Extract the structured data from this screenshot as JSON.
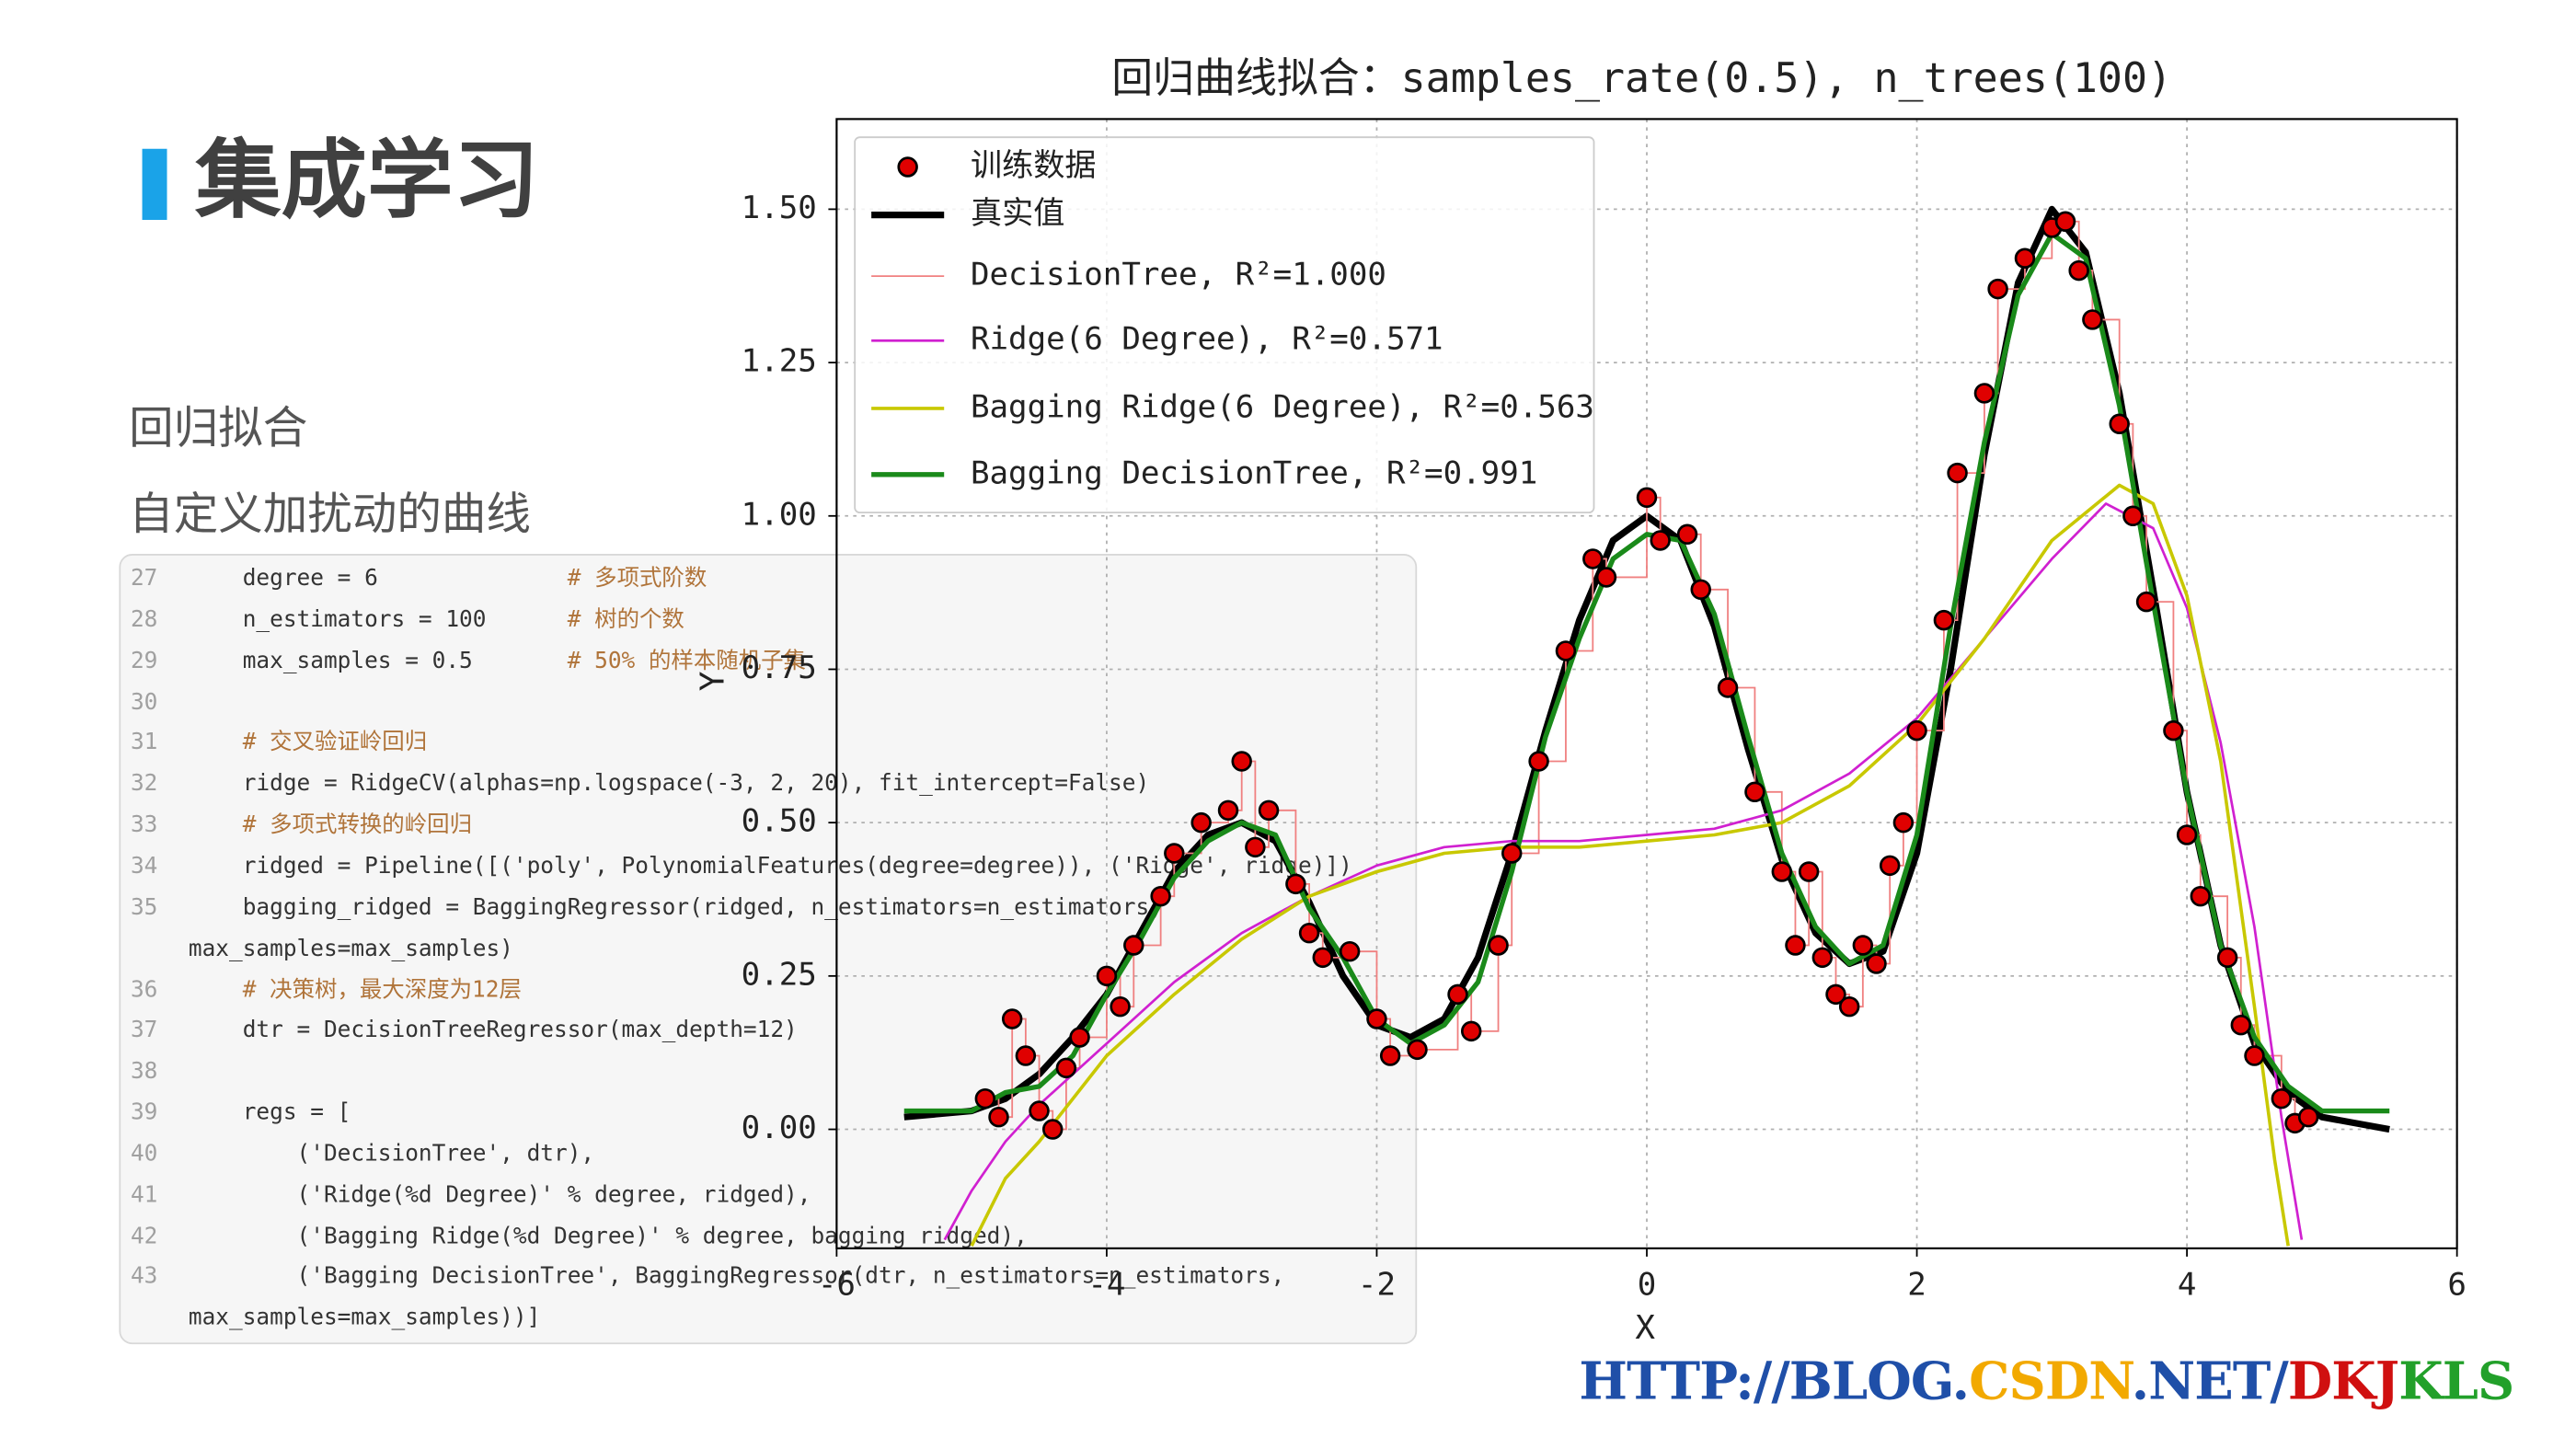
{
  "slide": {
    "title": "集成学习",
    "lines": [
      "回归拟合",
      "自定义加扰动的曲线"
    ]
  },
  "code": {
    "lines": [
      {
        "number": "27",
        "text": [
          "    degree = 6              # 多项式阶数"
        ]
      },
      {
        "number": "28",
        "text": [
          "    n_estimators = 100      # 树的个数"
        ]
      },
      {
        "number": "29",
        "text": [
          "    max_samples = 0.5       # 50% 的样本随机子集"
        ]
      },
      {
        "number": "30",
        "text": []
      },
      {
        "number": "31",
        "text": [
          "    # 交叉验证岭回归"
        ]
      },
      {
        "number": "32",
        "text": [
          "    ridge = RidgeCV(alphas=np.logspace(-3, 2, 20), fit_intercept=False)"
        ]
      },
      {
        "number": "33",
        "text": [
          "    # 多项式转换的岭回归"
        ]
      },
      {
        "number": "34",
        "text": [
          "    ridged = Pipeline([('poly', PolynomialFeatures(degree=degree)), ('Ridge', ridge)])"
        ]
      },
      {
        "number": "35",
        "text": [
          "    bagging_ridged = BaggingRegressor(ridged, n_estimators=n_estimators,",
          "max_samples=max_samples)"
        ]
      },
      {
        "number": "36",
        "text": [
          "    # 决策树，最大深度为12层"
        ]
      },
      {
        "number": "37",
        "text": [
          "    dtr = DecisionTreeRegressor(max_depth=12)"
        ]
      },
      {
        "number": "38",
        "text": []
      },
      {
        "number": "39",
        "text": [
          "    regs = ["
        ]
      },
      {
        "number": "40",
        "text": [
          "        ('DecisionTree', dtr),"
        ]
      },
      {
        "number": "41",
        "text": [
          "        ('Ridge(%d Degree)' % degree, ridged),"
        ]
      },
      {
        "number": "42",
        "text": [
          "        ('Bagging Ridge(%d Degree)' % degree, bagging_ridged),"
        ]
      },
      {
        "number": "43",
        "text": [
          "        ('Bagging DecisionTree', BaggingRegressor(dtr, n_estimators=n_estimators,",
          "max_samples=max_samples))]"
        ]
      }
    ]
  },
  "watermark": {
    "parts": [
      {
        "text": "HTTP://BLOG.",
        "color": "#1f4fa8"
      },
      {
        "text": "CSDN",
        "color": "#f2a900"
      },
      {
        "text": ".NET/",
        "color": "#1f4fa8"
      },
      {
        "text": "DKJ",
        "color": "#d01010"
      },
      {
        "text": "KLS",
        "color": "#22a02a"
      }
    ]
  },
  "chart_data": {
    "type": "line",
    "title": "回归曲线拟合：samples_rate(0.5), n_trees(100)",
    "x_label": "X",
    "y_label": "Y",
    "xlim": [
      -6,
      6
    ],
    "ylim": [
      -0.194,
      1.647
    ],
    "xticks": [
      -6,
      -4,
      -2,
      0,
      2,
      4,
      6
    ],
    "yticks": [
      {
        "value": 0,
        "label": "0.00"
      },
      {
        "value": 0.25,
        "label": "0.25"
      },
      {
        "value": 0.5,
        "label": "0.50"
      },
      {
        "value": 0.75,
        "label": "0.75"
      },
      {
        "value": 1,
        "label": "1.00"
      },
      {
        "value": 1.25,
        "label": "1.25"
      },
      {
        "value": 1.5,
        "label": "1.50"
      }
    ],
    "grid": true,
    "legend": "upper left",
    "series": [
      {
        "name": "训练数据",
        "style": "scatter",
        "color": "#e00000",
        "x": [
          -4.9,
          -4.8,
          -4.7,
          -4.6,
          -4.5,
          -4.4,
          -4.3,
          -4.2,
          -4.0,
          -3.9,
          -3.8,
          -3.6,
          -3.5,
          -3.3,
          -3.1,
          -3.0,
          -2.9,
          -2.8,
          -2.6,
          -2.5,
          -2.4,
          -2.2,
          -2.0,
          -1.9,
          -1.7,
          -1.4,
          -1.3,
          -1.1,
          -1.0,
          -0.8,
          -0.6,
          -0.4,
          -0.3,
          0.0,
          0.1,
          0.3,
          0.4,
          0.6,
          0.8,
          1.0,
          1.1,
          1.2,
          1.3,
          1.4,
          1.5,
          1.6,
          1.7,
          1.8,
          1.9,
          2.0,
          2.2,
          2.3,
          2.5,
          2.6,
          2.8,
          3.0,
          3.1,
          3.2,
          3.3,
          3.5,
          3.6,
          3.7,
          3.9,
          4.0,
          4.1,
          4.3,
          4.4,
          4.5,
          4.7,
          4.8,
          4.9
        ],
        "values": [
          0.05,
          0.02,
          0.18,
          0.12,
          0.03,
          0.0,
          0.1,
          0.15,
          0.25,
          0.2,
          0.3,
          0.38,
          0.45,
          0.5,
          0.52,
          0.6,
          0.46,
          0.52,
          0.4,
          0.32,
          0.28,
          0.29,
          0.18,
          0.12,
          0.13,
          0.22,
          0.16,
          0.3,
          0.45,
          0.6,
          0.78,
          0.93,
          0.9,
          1.03,
          0.96,
          0.97,
          0.88,
          0.72,
          0.55,
          0.42,
          0.3,
          0.42,
          0.28,
          0.22,
          0.2,
          0.3,
          0.27,
          0.43,
          0.5,
          0.65,
          0.83,
          1.07,
          1.2,
          1.37,
          1.42,
          1.47,
          1.48,
          1.4,
          1.32,
          1.15,
          1.0,
          0.86,
          0.65,
          0.48,
          0.38,
          0.28,
          0.17,
          0.12,
          0.05,
          0.01,
          0.02
        ]
      },
      {
        "name": "真实值",
        "style": "line",
        "color": "#000000",
        "width": 4,
        "x": [
          -5.5,
          -5.0,
          -4.75,
          -4.5,
          -4.25,
          -4.0,
          -3.75,
          -3.5,
          -3.25,
          -3.0,
          -2.75,
          -2.5,
          -2.25,
          -2.0,
          -1.75,
          -1.5,
          -1.25,
          -1.0,
          -0.75,
          -0.5,
          -0.25,
          0,
          0.25,
          0.5,
          0.75,
          1.0,
          1.25,
          1.5,
          1.75,
          2.0,
          2.25,
          2.5,
          2.75,
          3.0,
          3.25,
          3.5,
          3.75,
          4.0,
          4.25,
          4.5,
          4.75,
          5.0,
          5.25,
          5.5
        ],
        "values": [
          0.02,
          0.03,
          0.05,
          0.09,
          0.15,
          0.22,
          0.32,
          0.42,
          0.48,
          0.5,
          0.47,
          0.37,
          0.25,
          0.17,
          0.15,
          0.18,
          0.28,
          0.45,
          0.65,
          0.83,
          0.96,
          1.0,
          0.96,
          0.82,
          0.62,
          0.44,
          0.32,
          0.27,
          0.29,
          0.45,
          0.75,
          1.1,
          1.38,
          1.5,
          1.43,
          1.2,
          0.88,
          0.55,
          0.3,
          0.14,
          0.06,
          0.02,
          0.01,
          0.0
        ]
      },
      {
        "name": "DecisionTree, R²=1.000",
        "style": "step",
        "color": "#f08080",
        "width": 1,
        "x": [
          -4.9,
          -4.8,
          -4.7,
          -4.6,
          -4.5,
          -4.4,
          -4.3,
          -4.2,
          -4.0,
          -3.9,
          -3.8,
          -3.6,
          -3.5,
          -3.3,
          -3.1,
          -3.0,
          -2.9,
          -2.8,
          -2.6,
          -2.5,
          -2.4,
          -2.2,
          -2.0,
          -1.9,
          -1.7,
          -1.4,
          -1.3,
          -1.1,
          -1.0,
          -0.8,
          -0.6,
          -0.4,
          -0.3,
          0.0,
          0.1,
          0.3,
          0.4,
          0.6,
          0.8,
          1.0,
          1.1,
          1.2,
          1.3,
          1.4,
          1.5,
          1.6,
          1.7,
          1.8,
          1.9,
          2.0,
          2.2,
          2.3,
          2.5,
          2.6,
          2.8,
          3.0,
          3.1,
          3.2,
          3.3,
          3.5,
          3.6,
          3.7,
          3.9,
          4.0,
          4.1,
          4.3,
          4.4,
          4.5,
          4.7,
          4.8,
          4.9
        ],
        "values": [
          0.05,
          0.02,
          0.18,
          0.12,
          0.03,
          0.0,
          0.1,
          0.15,
          0.25,
          0.2,
          0.3,
          0.38,
          0.45,
          0.5,
          0.52,
          0.6,
          0.46,
          0.52,
          0.4,
          0.32,
          0.28,
          0.29,
          0.18,
          0.12,
          0.13,
          0.22,
          0.16,
          0.3,
          0.45,
          0.6,
          0.78,
          0.93,
          0.9,
          1.03,
          0.96,
          0.97,
          0.88,
          0.72,
          0.55,
          0.42,
          0.3,
          0.42,
          0.28,
          0.22,
          0.2,
          0.3,
          0.27,
          0.43,
          0.5,
          0.65,
          0.83,
          1.07,
          1.2,
          1.37,
          1.42,
          1.47,
          1.48,
          1.4,
          1.32,
          1.15,
          1.0,
          0.86,
          0.65,
          0.48,
          0.38,
          0.28,
          0.17,
          0.12,
          0.05,
          0.01,
          0.02
        ]
      },
      {
        "name": "Ridge(6 Degree), R²=0.571",
        "style": "line",
        "color": "#d020d0",
        "width": 1.5,
        "x": [
          -5.2,
          -5.0,
          -4.75,
          -4.5,
          -4.0,
          -3.5,
          -3.0,
          -2.5,
          -2.0,
          -1.5,
          -1.0,
          -0.5,
          0,
          0.5,
          1.0,
          1.5,
          2.0,
          2.5,
          3.0,
          3.4,
          3.75,
          4.0,
          4.25,
          4.5,
          4.7,
          4.85
        ],
        "values": [
          -0.18,
          -0.1,
          -0.02,
          0.04,
          0.14,
          0.24,
          0.32,
          0.38,
          0.43,
          0.46,
          0.47,
          0.47,
          0.48,
          0.49,
          0.52,
          0.58,
          0.67,
          0.8,
          0.93,
          1.02,
          0.98,
          0.85,
          0.63,
          0.33,
          0.02,
          -0.18
        ]
      },
      {
        "name": "Bagging Ridge(6 Degree), R²=0.563",
        "style": "line",
        "color": "#c8c800",
        "width": 2,
        "x": [
          -5.0,
          -4.75,
          -4.5,
          -4.0,
          -3.5,
          -3.0,
          -2.5,
          -2.0,
          -1.5,
          -1.0,
          -0.5,
          0,
          0.5,
          1.0,
          1.5,
          2.0,
          2.5,
          3.0,
          3.5,
          3.75,
          4.0,
          4.25,
          4.5,
          4.65,
          4.75
        ],
        "values": [
          -0.19,
          -0.08,
          -0.02,
          0.12,
          0.22,
          0.31,
          0.38,
          0.42,
          0.45,
          0.46,
          0.46,
          0.47,
          0.48,
          0.5,
          0.56,
          0.66,
          0.8,
          0.96,
          1.05,
          1.02,
          0.87,
          0.6,
          0.2,
          -0.05,
          -0.19
        ]
      },
      {
        "name": "Bagging DecisionTree, R²=0.991",
        "style": "line",
        "color": "#1a8a1a",
        "width": 3,
        "x": [
          -5.5,
          -5.0,
          -4.75,
          -4.5,
          -4.25,
          -4.0,
          -3.75,
          -3.5,
          -3.25,
          -3.0,
          -2.75,
          -2.5,
          -2.25,
          -2.0,
          -1.75,
          -1.5,
          -1.25,
          -1.0,
          -0.75,
          -0.5,
          -0.25,
          0,
          0.25,
          0.5,
          0.75,
          1.0,
          1.25,
          1.5,
          1.75,
          2.0,
          2.25,
          2.5,
          2.75,
          3.0,
          3.25,
          3.5,
          3.75,
          4.0,
          4.25,
          4.5,
          4.75,
          5.0,
          5.25,
          5.5
        ],
        "values": [
          0.03,
          0.03,
          0.06,
          0.07,
          0.12,
          0.22,
          0.31,
          0.41,
          0.47,
          0.5,
          0.48,
          0.36,
          0.28,
          0.18,
          0.14,
          0.17,
          0.24,
          0.42,
          0.64,
          0.8,
          0.93,
          0.97,
          0.96,
          0.84,
          0.64,
          0.45,
          0.33,
          0.27,
          0.3,
          0.48,
          0.82,
          1.12,
          1.36,
          1.46,
          1.42,
          1.18,
          0.86,
          0.55,
          0.3,
          0.15,
          0.07,
          0.03,
          0.03,
          0.03
        ]
      }
    ]
  }
}
